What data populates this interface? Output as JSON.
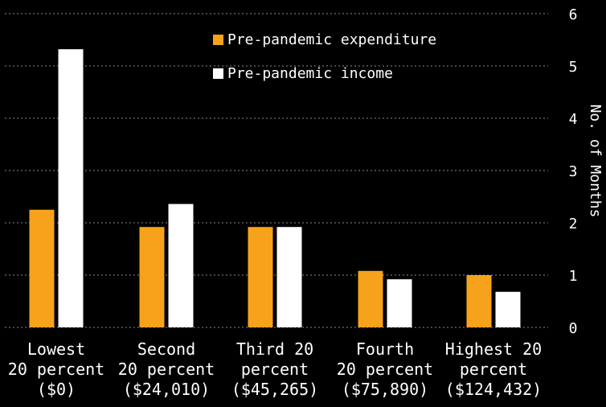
{
  "chart_data": {
    "type": "bar",
    "title": "",
    "xlabel": "",
    "ylabel": "No. of Months",
    "ylim": [
      0,
      6
    ],
    "yticks": [
      "0",
      "1",
      "2",
      "3",
      "4",
      "5",
      "6"
    ],
    "y_axis_side": "right",
    "grid": true,
    "legend_position": "top-center",
    "categories": [
      [
        "Lowest",
        "20 percent",
        "($0)"
      ],
      [
        "Second",
        "20 percent",
        "($24,010)"
      ],
      [
        "Third 20",
        "percent",
        "($45,265)"
      ],
      [
        "Fourth",
        "20 percent",
        "($75,890)"
      ],
      [
        "Highest 20",
        "percent",
        "($124,432)"
      ]
    ],
    "series": [
      {
        "name": "Pre-pandemic expenditure",
        "color": "#f7a21b",
        "values": [
          2.25,
          1.92,
          1.92,
          1.08,
          1.0
        ]
      },
      {
        "name": "Pre-pandemic income",
        "color": "#ffffff",
        "values": [
          5.32,
          2.36,
          1.92,
          0.92,
          0.68
        ]
      }
    ]
  },
  "background_color": "#000000"
}
